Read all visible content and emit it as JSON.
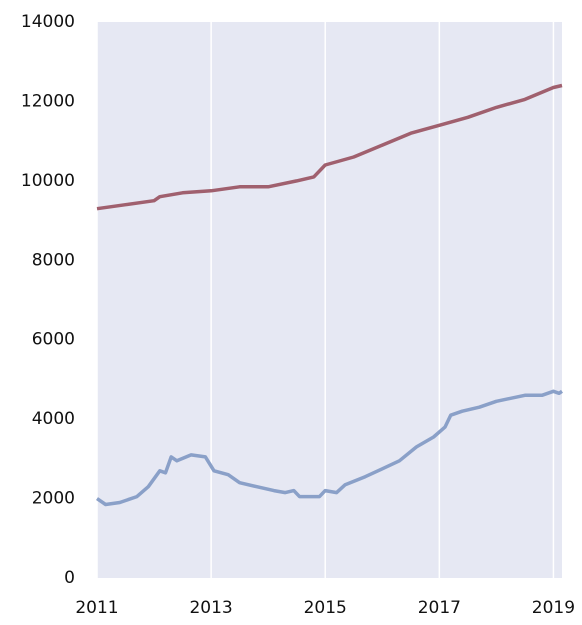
{
  "chart_data": {
    "type": "line",
    "series": [
      {
        "color": "#a0606e",
        "x": [
          2011,
          2011.5,
          2012,
          2012.1,
          2012.5,
          2013,
          2013.5,
          2014,
          2014.5,
          2014.8,
          2015,
          2015.5,
          2016,
          2016.5,
          2017,
          2017.5,
          2018,
          2018.5,
          2019,
          2019.15
        ],
        "values": [
          9300,
          9400,
          9500,
          9600,
          9700,
          9750,
          9850,
          9850,
          10000,
          10100,
          10400,
          10600,
          10900,
          11200,
          11400,
          11600,
          11850,
          12050,
          12350,
          12400
        ]
      },
      {
        "color": "#8aa0c8",
        "x": [
          2011,
          2011.15,
          2011.4,
          2011.7,
          2011.9,
          2012.1,
          2012.2,
          2012.3,
          2012.4,
          2012.65,
          2012.9,
          2013.05,
          2013.3,
          2013.5,
          2013.8,
          2014.1,
          2014.3,
          2014.45,
          2014.55,
          2014.9,
          2015,
          2015.2,
          2015.35,
          2015.7,
          2016,
          2016.3,
          2016.6,
          2016.9,
          2017.1,
          2017.2,
          2017.4,
          2017.7,
          2018,
          2018.5,
          2018.8,
          2019,
          2019.1,
          2019.15
        ],
        "values": [
          2000,
          1850,
          1900,
          2050,
          2300,
          2700,
          2650,
          3050,
          2950,
          3100,
          3050,
          2700,
          2600,
          2400,
          2300,
          2200,
          2150,
          2200,
          2050,
          2050,
          2200,
          2150,
          2350,
          2550,
          2750,
          2950,
          3300,
          3550,
          3800,
          4100,
          4200,
          4300,
          4450,
          4600,
          4600,
          4700,
          4650,
          4700
        ]
      }
    ],
    "xlim": [
      2011,
      2019.15
    ],
    "xticks": [
      2011,
      2013,
      2015,
      2017,
      2019
    ],
    "ylim": [
      0,
      14000
    ],
    "yticks": [
      0,
      2000,
      4000,
      6000,
      8000,
      10000,
      12000,
      14000
    ],
    "grid": "x"
  }
}
